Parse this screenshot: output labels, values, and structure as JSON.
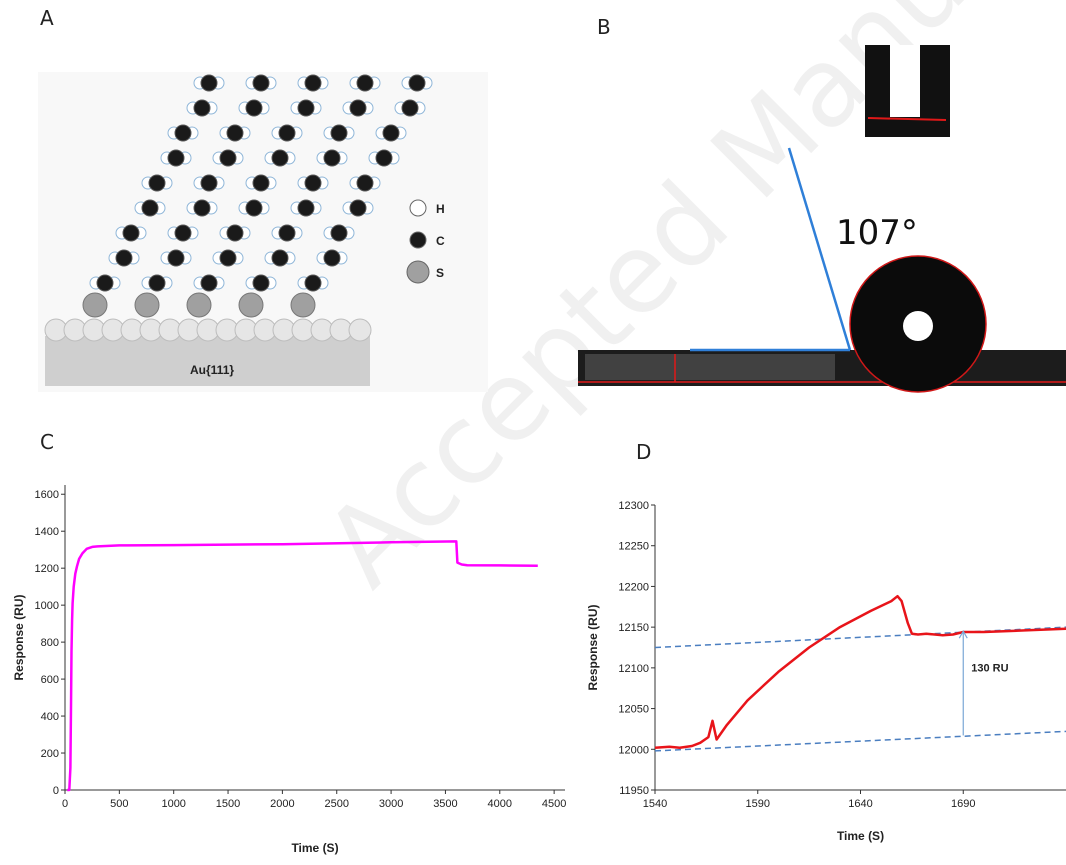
{
  "panels": {
    "a": {
      "letter": "A",
      "substrate_label": "Au{111}",
      "legend": [
        {
          "atom": "H",
          "color": "#ffffff"
        },
        {
          "atom": "C",
          "color": "#1a1a1a"
        },
        {
          "atom": "S",
          "color": "#a0a0a0"
        }
      ]
    },
    "b": {
      "letter": "B",
      "angle_label": "107°"
    },
    "c": {
      "letter": "C"
    },
    "d": {
      "letter": "D",
      "annotation": "130 RU"
    }
  },
  "watermark": "Accepted Manuscript",
  "chart_data": [
    {
      "type": "line",
      "panel": "C",
      "xlabel": "Time (S)",
      "ylabel": "Response (RU)",
      "xlim": [
        0,
        4600
      ],
      "ylim": [
        0,
        1650
      ],
      "xticks": [
        0,
        500,
        1000,
        1500,
        2000,
        2500,
        3000,
        3500,
        4000,
        4500
      ],
      "yticks": [
        0,
        200,
        400,
        600,
        800,
        1000,
        1200,
        1400,
        1600
      ],
      "color": "#ff00ff",
      "series": [
        {
          "x": [
            20,
            40,
            50,
            55,
            60,
            65,
            70,
            80,
            95,
            110,
            130,
            160,
            200,
            250,
            300,
            500,
            1000,
            2000,
            3000,
            3600,
            3610,
            3650,
            3700,
            4000,
            4350
          ],
          "values": [
            0,
            0,
            120,
            450,
            750,
            920,
            1010,
            1100,
            1170,
            1210,
            1250,
            1280,
            1305,
            1315,
            1318,
            1323,
            1325,
            1330,
            1340,
            1345,
            1230,
            1220,
            1216,
            1215,
            1213
          ]
        }
      ]
    },
    {
      "type": "line",
      "panel": "D",
      "xlabel": "Time (S)",
      "ylabel": "Response (RU)",
      "xlim": [
        1540,
        1740
      ],
      "ylim": [
        11950,
        12300
      ],
      "xticks": [
        1540,
        1590,
        1640,
        1690
      ],
      "yticks": [
        11950,
        12000,
        12050,
        12100,
        12150,
        12200,
        12250,
        12300
      ],
      "color": "#e8141a",
      "series": [
        {
          "x": [
            1540,
            1547,
            1552,
            1558,
            1562,
            1566,
            1568,
            1570,
            1575,
            1585,
            1600,
            1615,
            1630,
            1645,
            1655,
            1658,
            1660,
            1663,
            1665,
            1668,
            1672,
            1680,
            1685,
            1690,
            1700,
            1720,
            1740
          ],
          "values": [
            12002,
            12003,
            12002,
            12004,
            12008,
            12015,
            12035,
            12012,
            12030,
            12060,
            12095,
            12125,
            12150,
            12170,
            12182,
            12188,
            12182,
            12155,
            12142,
            12141,
            12142,
            12140,
            12141,
            12144,
            12144,
            12146,
            12148
          ]
        }
      ],
      "baselines": [
        {
          "x": [
            1540,
            1740
          ],
          "values": [
            12125,
            12150
          ]
        },
        {
          "x": [
            1540,
            1740
          ],
          "values": [
            11998,
            12022
          ]
        }
      ],
      "arrow": {
        "x": 1690,
        "from": 12017,
        "to": 12145
      }
    }
  ]
}
